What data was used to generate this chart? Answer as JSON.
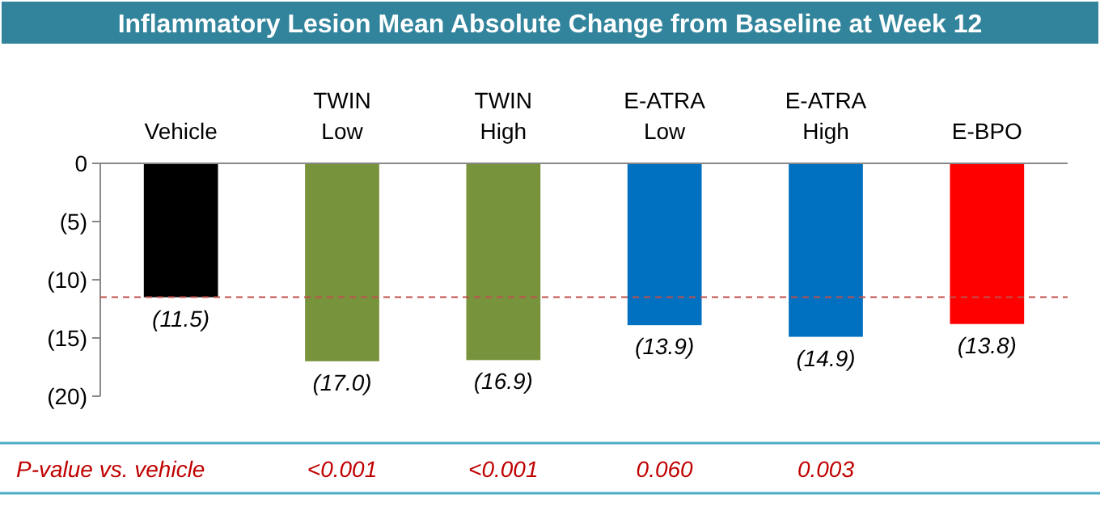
{
  "chart_data": {
    "type": "bar",
    "title": "Inflammatory Lesion Mean Absolute Change from Baseline at Week 12",
    "categories": [
      "Vehicle",
      "TWIN Low",
      "TWIN High",
      "E-ATRA Low",
      "E-ATRA High",
      "E-BPO"
    ],
    "values": [
      -11.5,
      -17.0,
      -16.9,
      -13.9,
      -14.9,
      -13.8
    ],
    "colors": [
      "#000000",
      "#77933c",
      "#77933c",
      "#0070c0",
      "#0070c0",
      "#ff0000"
    ],
    "value_labels": [
      "(11.5)",
      "(17.0)",
      "(16.9)",
      "(13.9)",
      "(14.9)",
      "(13.8)"
    ],
    "ylim": [
      -20,
      0
    ],
    "yticks": [
      {
        "value": 0,
        "label": "0"
      },
      {
        "value": -5,
        "label": "(5)"
      },
      {
        "value": -10,
        "label": "(10)"
      },
      {
        "value": -15,
        "label": "(15)"
      },
      {
        "value": -20,
        "label": "(20)"
      }
    ],
    "ref_lines": [
      {
        "axis": "y",
        "value": -11.5,
        "color": "#c0504d",
        "line_style": "dashed"
      }
    ],
    "annotations": [
      "P-value vs. vehicle",
      "<0.001",
      "<0.001",
      "0.060",
      "0.003"
    ],
    "grid": false
  }
}
